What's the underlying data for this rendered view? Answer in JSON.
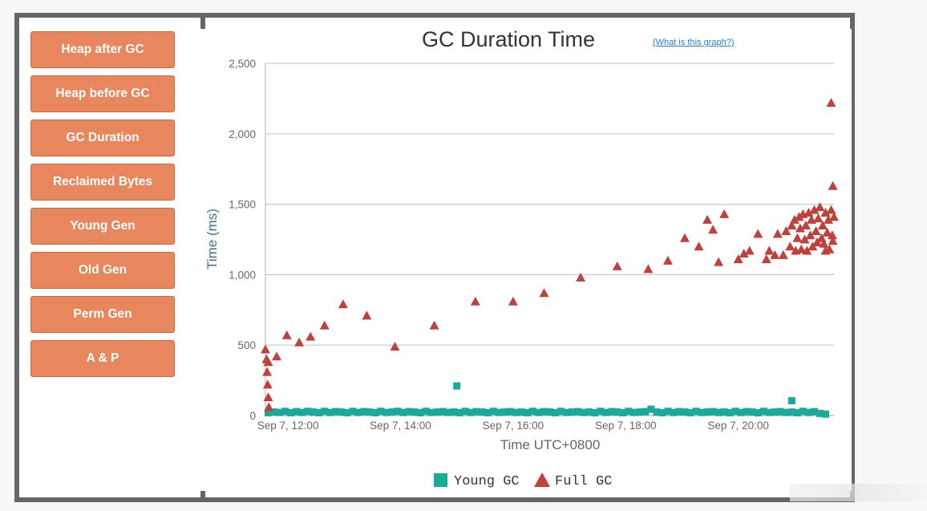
{
  "sidebar": {
    "items": [
      {
        "label": "Heap after GC"
      },
      {
        "label": "Heap before GC"
      },
      {
        "label": "GC Duration"
      },
      {
        "label": "Reclaimed Bytes"
      },
      {
        "label": "Young Gen"
      },
      {
        "label": "Old Gen"
      },
      {
        "label": "Perm Gen"
      },
      {
        "label": "A & P"
      }
    ]
  },
  "chart": {
    "help_link": "(What is this graph?)"
  },
  "colors": {
    "button": "#e8875e",
    "young_gc": "#1aaa9c",
    "full_gc": "#c0403a",
    "frame": "#666666"
  },
  "chart_data": {
    "type": "scatter",
    "title": "GC Duration Time",
    "xlabel": "Time UTC+0800",
    "ylabel": "Time (ms)",
    "ylim": [
      0,
      2500
    ],
    "xlim_hours": [
      11.6,
      21.7
    ],
    "yticks": [
      0,
      500,
      1000,
      1500,
      2000,
      2500
    ],
    "ytick_labels": [
      "0",
      "500",
      "1,000",
      "1,500",
      "2,000",
      "2,500"
    ],
    "xticks": [
      12,
      14,
      16,
      18,
      20
    ],
    "xtick_labels": [
      "Sep 7, 12:00",
      "Sep 7, 14:00",
      "Sep 7, 16:00",
      "Sep 7, 18:00",
      "Sep 7, 20:00"
    ],
    "grid": true,
    "legend": "bottom",
    "series": [
      {
        "name": "Young GC",
        "marker": "square",
        "points": [
          [
            11.65,
            20
          ],
          [
            11.75,
            25
          ],
          [
            11.85,
            22
          ],
          [
            11.95,
            30
          ],
          [
            12.05,
            20
          ],
          [
            12.15,
            28
          ],
          [
            12.25,
            22
          ],
          [
            12.35,
            30
          ],
          [
            12.45,
            25
          ],
          [
            12.55,
            20
          ],
          [
            12.65,
            30
          ],
          [
            12.75,
            22
          ],
          [
            12.85,
            28
          ],
          [
            12.95,
            25
          ],
          [
            13.05,
            20
          ],
          [
            13.15,
            30
          ],
          [
            13.25,
            22
          ],
          [
            13.35,
            28
          ],
          [
            13.45,
            25
          ],
          [
            13.55,
            20
          ],
          [
            13.65,
            30
          ],
          [
            13.75,
            22
          ],
          [
            13.85,
            25
          ],
          [
            13.95,
            30
          ],
          [
            14.05,
            22
          ],
          [
            14.15,
            28
          ],
          [
            14.25,
            25
          ],
          [
            14.35,
            20
          ],
          [
            14.45,
            30
          ],
          [
            14.55,
            22
          ],
          [
            14.65,
            25
          ],
          [
            14.75,
            28
          ],
          [
            14.85,
            22
          ],
          [
            14.95,
            25
          ],
          [
            15.05,
            20
          ],
          [
            15.15,
            30
          ],
          [
            15.25,
            22
          ],
          [
            15.35,
            28
          ],
          [
            15.45,
            25
          ],
          [
            15.55,
            20
          ],
          [
            15.65,
            30
          ],
          [
            15.75,
            22
          ],
          [
            15.85,
            25
          ],
          [
            15.95,
            28
          ],
          [
            16.05,
            22
          ],
          [
            16.15,
            25
          ],
          [
            16.25,
            20
          ],
          [
            16.35,
            30
          ],
          [
            16.45,
            22
          ],
          [
            16.55,
            28
          ],
          [
            16.65,
            25
          ],
          [
            16.75,
            20
          ],
          [
            16.85,
            30
          ],
          [
            16.95,
            22
          ],
          [
            17.05,
            25
          ],
          [
            17.15,
            28
          ],
          [
            17.25,
            22
          ],
          [
            17.35,
            25
          ],
          [
            17.45,
            20
          ],
          [
            17.55,
            30
          ],
          [
            17.65,
            22
          ],
          [
            17.75,
            28
          ],
          [
            17.85,
            25
          ],
          [
            17.95,
            20
          ],
          [
            18.05,
            30
          ],
          [
            18.15,
            22
          ],
          [
            18.25,
            25
          ],
          [
            18.35,
            28
          ],
          [
            18.45,
            45
          ],
          [
            18.55,
            25
          ],
          [
            18.65,
            20
          ],
          [
            18.75,
            30
          ],
          [
            18.85,
            22
          ],
          [
            18.95,
            28
          ],
          [
            19.05,
            25
          ],
          [
            19.15,
            20
          ],
          [
            19.25,
            30
          ],
          [
            19.35,
            22
          ],
          [
            19.45,
            25
          ],
          [
            19.55,
            28
          ],
          [
            19.65,
            22
          ],
          [
            19.75,
            25
          ],
          [
            19.85,
            20
          ],
          [
            19.95,
            30
          ],
          [
            20.05,
            22
          ],
          [
            20.15,
            28
          ],
          [
            20.25,
            25
          ],
          [
            20.35,
            20
          ],
          [
            20.45,
            30
          ],
          [
            20.55,
            22
          ],
          [
            20.65,
            25
          ],
          [
            20.75,
            28
          ],
          [
            20.85,
            22
          ],
          [
            20.95,
            25
          ],
          [
            21.05,
            20
          ],
          [
            21.15,
            30
          ],
          [
            21.25,
            22
          ],
          [
            21.35,
            28
          ],
          [
            21.45,
            15
          ],
          [
            21.55,
            10
          ],
          [
            15.0,
            210
          ],
          [
            20.95,
            105
          ]
        ]
      },
      {
        "name": "Full GC",
        "marker": "triangle",
        "points": [
          [
            11.6,
            470
          ],
          [
            11.62,
            400
          ],
          [
            11.63,
            310
          ],
          [
            11.64,
            220
          ],
          [
            11.65,
            130
          ],
          [
            11.66,
            60
          ],
          [
            11.65,
            380
          ],
          [
            11.8,
            420
          ],
          [
            11.98,
            570
          ],
          [
            12.2,
            520
          ],
          [
            12.4,
            560
          ],
          [
            12.65,
            640
          ],
          [
            12.98,
            790
          ],
          [
            13.4,
            710
          ],
          [
            13.9,
            490
          ],
          [
            14.6,
            640
          ],
          [
            15.33,
            810
          ],
          [
            16.0,
            810
          ],
          [
            16.55,
            870
          ],
          [
            17.2,
            980
          ],
          [
            17.85,
            1060
          ],
          [
            18.4,
            1040
          ],
          [
            18.75,
            1100
          ],
          [
            19.05,
            1260
          ],
          [
            19.3,
            1200
          ],
          [
            19.45,
            1390
          ],
          [
            19.55,
            1320
          ],
          [
            19.65,
            1090
          ],
          [
            19.75,
            1430
          ],
          [
            20.0,
            1110
          ],
          [
            20.1,
            1150
          ],
          [
            20.2,
            1170
          ],
          [
            20.35,
            1290
          ],
          [
            20.5,
            1110
          ],
          [
            20.55,
            1170
          ],
          [
            20.65,
            1140
          ],
          [
            20.7,
            1290
          ],
          [
            20.8,
            1140
          ],
          [
            20.85,
            1310
          ],
          [
            20.92,
            1200
          ],
          [
            20.95,
            1350
          ],
          [
            21.0,
            1390
          ],
          [
            21.02,
            1170
          ],
          [
            21.05,
            1260
          ],
          [
            21.08,
            1410
          ],
          [
            21.1,
            1330
          ],
          [
            21.12,
            1180
          ],
          [
            21.15,
            1430
          ],
          [
            21.18,
            1250
          ],
          [
            21.2,
            1350
          ],
          [
            21.22,
            1170
          ],
          [
            21.25,
            1440
          ],
          [
            21.28,
            1280
          ],
          [
            21.3,
            1390
          ],
          [
            21.32,
            1200
          ],
          [
            21.35,
            1460
          ],
          [
            21.38,
            1310
          ],
          [
            21.4,
            1230
          ],
          [
            21.42,
            1400
          ],
          [
            21.45,
            1480
          ],
          [
            21.48,
            1260
          ],
          [
            21.5,
            1350
          ],
          [
            21.52,
            1220
          ],
          [
            21.55,
            1440
          ],
          [
            21.58,
            1300
          ],
          [
            21.6,
            1390
          ],
          [
            21.62,
            1180
          ],
          [
            21.65,
            1460
          ],
          [
            21.68,
            1240
          ],
          [
            21.7,
            1410
          ],
          [
            21.55,
            1170
          ],
          [
            21.67,
            1280
          ],
          [
            21.68,
            1630
          ],
          [
            21.65,
            2220
          ]
        ]
      }
    ]
  }
}
